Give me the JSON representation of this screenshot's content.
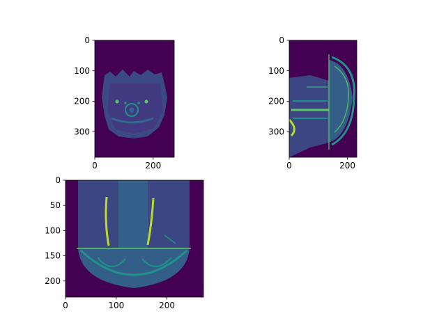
{
  "chart_data": [
    {
      "type": "heatmap",
      "view": "axial",
      "title": "",
      "xlabel": "",
      "ylabel": "",
      "shape": [
        384,
        272
      ],
      "xlim": [
        0,
        272
      ],
      "ylim": [
        384,
        0
      ],
      "xticks": [
        0,
        200
      ],
      "yticks": [
        0,
        100,
        200,
        300
      ],
      "colormap": "viridis"
    },
    {
      "type": "heatmap",
      "view": "sagittal",
      "title": "",
      "xlabel": "",
      "ylabel": "",
      "shape": [
        384,
        232
      ],
      "xlim": [
        0,
        232
      ],
      "ylim": [
        384,
        0
      ],
      "xticks": [
        0,
        200
      ],
      "yticks": [
        0,
        100,
        200,
        300
      ],
      "colormap": "viridis"
    },
    {
      "type": "heatmap",
      "view": "coronal",
      "title": "",
      "xlabel": "",
      "ylabel": "",
      "shape": [
        232,
        272
      ],
      "xlim": [
        0,
        272
      ],
      "ylim": [
        232,
        0
      ],
      "xticks": [
        0,
        100,
        200
      ],
      "yticks": [
        0,
        50,
        100,
        150,
        200
      ],
      "colormap": "viridis"
    }
  ],
  "colors": {
    "background": "#440154",
    "tissue_dark": "#3b528b",
    "tissue_mid": "#21918c",
    "tissue_bright": "#5ec962",
    "vessel": "#b5de2b"
  }
}
